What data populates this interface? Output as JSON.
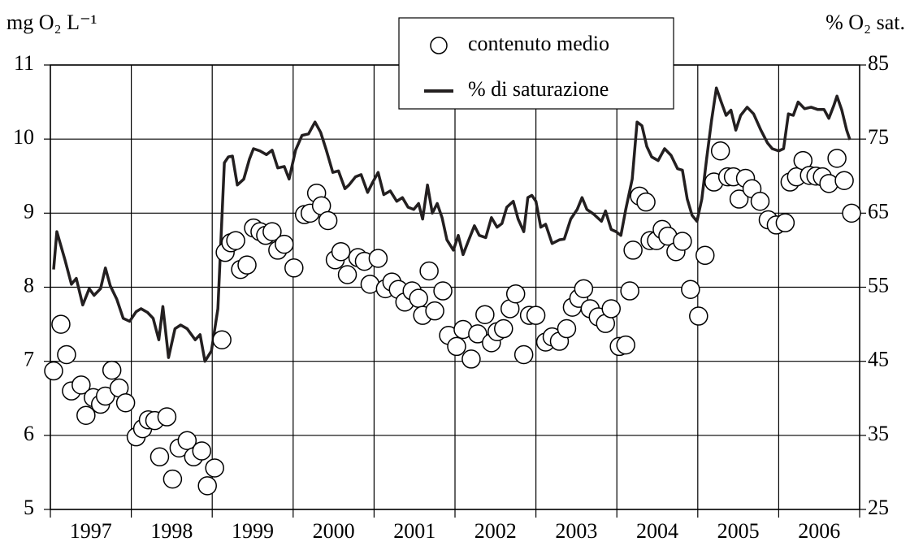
{
  "chart_data": {
    "type": "combo",
    "y_label": "mg O₂ L⁻¹",
    "y2_label": "% O₂ sat.",
    "legend": "top",
    "grid": true,
    "xlim": [
      1997,
      2007
    ],
    "xticks": [
      1997,
      1998,
      1999,
      2000,
      2001,
      2002,
      2003,
      2004,
      2005,
      2006,
      2007
    ],
    "year_labels": [
      {
        "value": 1997.5,
        "label": "1997"
      },
      {
        "value": 1998.5,
        "label": "1998"
      },
      {
        "value": 1999.5,
        "label": "1999"
      },
      {
        "value": 2000.5,
        "label": "2000"
      },
      {
        "value": 2001.5,
        "label": "2001"
      },
      {
        "value": 2002.5,
        "label": "2002"
      },
      {
        "value": 2003.5,
        "label": "2003"
      },
      {
        "value": 2004.5,
        "label": "2004"
      },
      {
        "value": 2005.5,
        "label": "2005"
      },
      {
        "value": 2006.5,
        "label": "2006"
      }
    ],
    "ylim": [
      5,
      11
    ],
    "yticks": [
      5,
      6,
      7,
      8,
      9,
      10,
      11
    ],
    "y2lim": [
      25,
      85
    ],
    "y2ticks": [
      25,
      35,
      45,
      55,
      65,
      75,
      85
    ],
    "series": [
      {
        "name": "contenuto medio",
        "type": "scatter",
        "color": "#000000",
        "x": [
          1997.04,
          1997.13,
          1997.2,
          1997.26,
          1997.38,
          1997.44,
          1997.53,
          1997.62,
          1997.68,
          1997.76,
          1997.85,
          1997.93,
          1998.06,
          1998.14,
          1998.21,
          1998.29,
          1998.35,
          1998.44,
          1998.51,
          1998.59,
          1998.69,
          1998.77,
          1998.87,
          1998.94,
          1999.03,
          1999.12,
          1999.16,
          1999.23,
          1999.29,
          1999.35,
          1999.43,
          1999.51,
          1999.59,
          1999.66,
          1999.74,
          1999.81,
          1999.89,
          2000.01,
          2000.14,
          2000.21,
          2000.29,
          2000.35,
          2000.43,
          2000.52,
          2000.59,
          2000.67,
          2000.8,
          2000.88,
          2000.95,
          2001.05,
          2001.14,
          2001.22,
          2001.3,
          2001.38,
          2001.47,
          2001.55,
          2001.6,
          2001.68,
          2001.75,
          2001.85,
          2001.92,
          2002.02,
          2002.1,
          2002.2,
          2002.28,
          2002.37,
          2002.45,
          2002.52,
          2002.6,
          2002.68,
          2002.75,
          2002.85,
          2002.92,
          2003.0,
          2003.12,
          2003.2,
          2003.29,
          2003.38,
          2003.45,
          2003.53,
          2003.59,
          2003.67,
          2003.77,
          2003.86,
          2003.93,
          2004.03,
          2004.11,
          2004.16,
          2004.2,
          2004.28,
          2004.36,
          2004.41,
          2004.49,
          2004.56,
          2004.63,
          2004.73,
          2004.81,
          2004.91,
          2005.01,
          2005.09,
          2005.2,
          2005.28,
          2005.37,
          2005.44,
          2005.51,
          2005.59,
          2005.67,
          2005.77,
          2005.87,
          2005.97,
          2006.08,
          2006.14,
          2006.22,
          2006.3,
          2006.38,
          2006.46,
          2006.54,
          2006.62,
          2006.72,
          2006.81,
          2006.9
        ],
        "values": [
          6.87,
          7.5,
          7.09,
          6.6,
          6.68,
          6.27,
          6.51,
          6.42,
          6.53,
          6.88,
          6.64,
          6.44,
          5.98,
          6.09,
          6.21,
          6.2,
          5.71,
          6.25,
          5.41,
          5.83,
          5.93,
          5.71,
          5.79,
          5.32,
          5.56,
          7.29,
          8.47,
          8.6,
          8.63,
          8.24,
          8.3,
          8.8,
          8.75,
          8.7,
          8.75,
          8.5,
          8.58,
          8.26,
          8.98,
          9.0,
          9.27,
          9.1,
          8.9,
          8.37,
          8.48,
          8.17,
          8.4,
          8.35,
          8.04,
          8.39,
          7.98,
          8.07,
          7.97,
          7.8,
          7.95,
          7.85,
          7.62,
          8.22,
          7.68,
          7.95,
          7.35,
          7.2,
          7.43,
          7.03,
          7.37,
          7.63,
          7.25,
          7.4,
          7.44,
          7.71,
          7.91,
          7.09,
          7.62,
          7.62,
          7.26,
          7.33,
          7.27,
          7.44,
          7.73,
          7.85,
          7.98,
          7.71,
          7.6,
          7.51,
          7.71,
          7.2,
          7.22,
          7.95,
          8.5,
          9.23,
          9.15,
          8.63,
          8.63,
          8.78,
          8.69,
          8.48,
          8.62,
          7.97,
          7.61,
          8.43,
          9.42,
          9.84,
          9.49,
          9.49,
          9.19,
          9.47,
          9.33,
          9.16,
          8.91,
          8.84,
          8.87,
          9.42,
          9.49,
          9.71,
          9.51,
          9.5,
          9.49,
          9.4,
          9.74,
          9.44,
          9.0
        ]
      },
      {
        "name": "% di saturazione",
        "type": "line",
        "axis": "y2",
        "color": "#231f20",
        "x": [
          1997.04,
          1997.08,
          1997.18,
          1997.26,
          1997.32,
          1997.4,
          1997.48,
          1997.54,
          1997.62,
          1997.68,
          1997.74,
          1997.82,
          1997.9,
          1997.98,
          1998.06,
          1998.12,
          1998.2,
          1998.27,
          1998.34,
          1998.39,
          1998.46,
          1998.54,
          1998.61,
          1998.69,
          1998.79,
          1998.85,
          1998.91,
          1998.99,
          1999.07,
          1999.15,
          1999.2,
          1999.25,
          1999.31,
          1999.39,
          1999.46,
          1999.51,
          1999.59,
          1999.67,
          1999.74,
          1999.81,
          1999.89,
          1999.95,
          2000.03,
          2000.11,
          2000.19,
          2000.27,
          2000.34,
          2000.41,
          2000.49,
          2000.56,
          2000.64,
          2000.69,
          2000.77,
          2000.84,
          2000.92,
          2000.98,
          2001.05,
          2001.12,
          2001.2,
          2001.28,
          2001.35,
          2001.42,
          2001.49,
          2001.55,
          2001.6,
          2001.66,
          2001.72,
          2001.78,
          2001.84,
          2001.9,
          2001.98,
          2002.04,
          2002.1,
          2002.16,
          2002.24,
          2002.3,
          2002.38,
          2002.45,
          2002.52,
          2002.58,
          2002.64,
          2002.72,
          2002.78,
          2002.85,
          2002.9,
          2002.95,
          2003.0,
          2003.06,
          2003.12,
          2003.2,
          2003.29,
          2003.35,
          2003.43,
          2003.51,
          2003.57,
          2003.63,
          2003.71,
          2003.81,
          2003.86,
          2003.93,
          2003.99,
          2004.05,
          2004.11,
          2004.19,
          2004.25,
          2004.31,
          2004.37,
          2004.43,
          2004.51,
          2004.59,
          2004.67,
          2004.75,
          2004.81,
          2004.87,
          2004.93,
          2004.99,
          2005.05,
          2005.11,
          2005.17,
          2005.23,
          2005.29,
          2005.35,
          2005.41,
          2005.47,
          2005.53,
          2005.61,
          2005.69,
          2005.78,
          2005.86,
          2005.92,
          2006.0,
          2006.06,
          2006.12,
          2006.18,
          2006.24,
          2006.32,
          2006.4,
          2006.48,
          2006.56,
          2006.62,
          2006.68,
          2006.72,
          2006.78,
          2006.84,
          2006.88
        ],
        "values": [
          57.4,
          62.5,
          58.7,
          55.4,
          56.2,
          52.6,
          54.8,
          53.9,
          54.8,
          57.6,
          55.2,
          53.4,
          50.8,
          50.4,
          51.7,
          52.1,
          51.6,
          50.8,
          47.9,
          52.4,
          45.5,
          49.4,
          49.9,
          49.4,
          47.9,
          48.6,
          45.0,
          46.4,
          52.1,
          71.8,
          72.6,
          72.7,
          68.8,
          69.6,
          72.3,
          73.7,
          73.4,
          72.9,
          73.5,
          71.1,
          71.3,
          69.6,
          73.5,
          75.5,
          75.7,
          77.3,
          75.9,
          73.5,
          70.5,
          70.7,
          68.3,
          68.8,
          69.9,
          70.2,
          67.8,
          69.1,
          70.5,
          67.5,
          68.0,
          66.6,
          67.1,
          65.8,
          65.5,
          66.3,
          64.2,
          68.8,
          65.0,
          66.3,
          64.4,
          61.4,
          60.0,
          62.0,
          59.4,
          61.1,
          63.3,
          62.0,
          61.7,
          64.4,
          63.1,
          63.6,
          65.8,
          66.6,
          64.2,
          62.5,
          67.1,
          67.4,
          66.6,
          63.1,
          63.5,
          60.9,
          61.4,
          61.5,
          64.2,
          65.5,
          67.1,
          65.5,
          64.9,
          63.9,
          65.3,
          62.8,
          62.5,
          62.0,
          65.5,
          69.6,
          77.3,
          76.8,
          74.0,
          72.6,
          72.1,
          73.7,
          72.8,
          71.0,
          70.8,
          66.9,
          64.7,
          63.9,
          66.9,
          72.4,
          77.5,
          81.9,
          80.0,
          78.2,
          78.9,
          76.2,
          78.2,
          79.3,
          78.4,
          76.2,
          74.5,
          73.7,
          73.4,
          73.7,
          78.4,
          78.2,
          80.0,
          79.1,
          79.3,
          79.0,
          79.0,
          77.8,
          79.5,
          80.8,
          78.9,
          76.2,
          74.9
        ]
      }
    ]
  }
}
